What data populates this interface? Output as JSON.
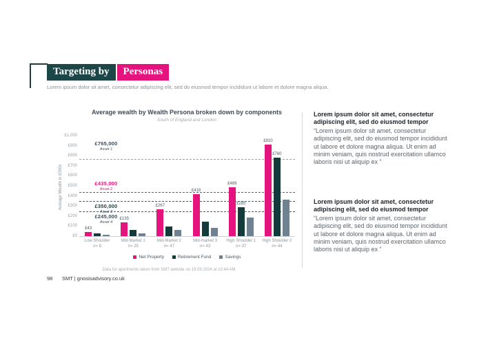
{
  "header": {
    "title_primary": "Targeting by",
    "title_accent": "Personas",
    "lead": "Lorem ipsum dolor sit amet, consectetur adipiscing elit, sed do eiusmod tempor incididunt ut labore et dolore magna aliqua."
  },
  "colors": {
    "dark_teal": "#1d4649",
    "accent_pink": "#e5137d",
    "retirement_teal": "#143b3b",
    "savings_gray": "#6f8292",
    "slate_text": "#3d4c5a"
  },
  "chart_data": {
    "type": "bar",
    "title": "Average wealth by Wealth Persona broken down by components",
    "subtitle": "South of England and London",
    "ylabel": "Average Wealth in £000s",
    "ylim": [
      0,
      1000
    ],
    "ytick_step": 100,
    "ytick_labels": [
      "£0",
      "£100",
      "£200",
      "£300",
      "£400",
      "£500",
      "£600",
      "£700",
      "£800",
      "£900",
      "£1,000"
    ],
    "grid": false,
    "legend_position": "bottom",
    "categories": [
      "Low Shoulder",
      "Mid-Market 1",
      "Mid-Market 2",
      "Mid-market 3",
      "High Shoulder 1",
      "High Shoulder 2"
    ],
    "category_n": [
      "n= 8",
      "n= 25",
      "n= 47",
      "n= 43",
      "n= 37",
      "n= 44"
    ],
    "series": [
      {
        "name": "Net Property",
        "color": "#e5137d",
        "values": [
          43,
          135,
          267,
          418,
          489,
          910
        ],
        "labels": [
          "£43",
          "£135",
          "£267",
          "£418",
          "£489",
          "£910"
        ]
      },
      {
        "name": "Retirement Fund",
        "color": "#143b3b",
        "values": [
          25,
          65,
          95,
          145,
          285,
          780
        ],
        "labels": [
          null,
          null,
          null,
          null,
          "£285",
          "£780"
        ]
      },
      {
        "name": "Savings",
        "color": "#6f8292",
        "values": [
          15,
          30,
          60,
          85,
          185,
          360
        ],
        "labels": [
          null,
          null,
          null,
          null,
          null,
          null
        ]
      }
    ],
    "reference_lines": [
      {
        "value": 765,
        "label": "£765,000",
        "sublabel": "Asset 1",
        "label_color": "#3d4c5a",
        "line_color": "#98a1a8",
        "label_position": "above_far"
      },
      {
        "value": 435,
        "label": "£435,000",
        "sublabel": "Asset 2",
        "label_color": "#e5137d",
        "line_color": "#e5137d",
        "label_position": "above"
      },
      {
        "value": 350,
        "label": "£350,000",
        "sublabel": "Asset 3",
        "label_color": "#143b3b",
        "line_color": "#4a555d",
        "label_position": "below"
      },
      {
        "value": 245,
        "label": "£245,000",
        "sublabel": "Asset 4",
        "label_color": "#3d4c5a",
        "line_color": "#4a555d",
        "label_position": "below"
      }
    ],
    "source_note": "Data for apartments taken from SMT website on 19.09.2024 at 10:44 AM"
  },
  "right_column": {
    "blocks": [
      {
        "heading": "Lorem ipsum dolor sit amet, consectetur adipiscing elit, sed do eiusmod tempor",
        "body": "“Lorem ipsum dolor sit amet, consectetur adipiscing elit, sed do eiusmod tempor incididunt ut labore et dolore magna aliqua. Ut enim ad minim veniam, quis nostrud exercitation ullamco laboris nisi ut aliquip ex ”"
      },
      {
        "heading": "Lorem ipsum dolor sit amet, consectetur adipiscing elit, sed do eiusmod tempor",
        "body": "“Lorem ipsum dolor sit amet, consectetur adipiscing elit, sed do eiusmod tempor incididunt ut labore et dolore magna aliqua. Ut enim ad minim veniam, quis nostrud exercitation ullamco laboris nisi ut aliquip ex ”"
      }
    ]
  },
  "footer": {
    "page_number": "98",
    "site": "SMT | gnosisadvisory.co.uk"
  }
}
